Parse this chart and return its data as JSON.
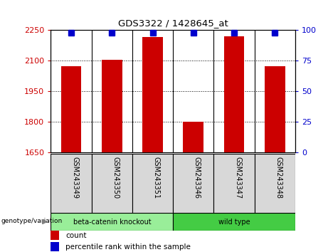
{
  "title": "GDS3322 / 1428645_at",
  "samples": [
    "GSM243349",
    "GSM243350",
    "GSM243351",
    "GSM243346",
    "GSM243347",
    "GSM243348"
  ],
  "counts": [
    2075,
    2105,
    2215,
    1800,
    2220,
    2075
  ],
  "ylim_left": [
    1650,
    2250
  ],
  "yticks_left": [
    1650,
    1800,
    1950,
    2100,
    2250
  ],
  "ylim_right": [
    0,
    100
  ],
  "yticks_right": [
    0,
    25,
    50,
    75,
    100
  ],
  "bar_color": "#cc0000",
  "percentile_color": "#0000cc",
  "group1_label": "beta-catenin knockout",
  "group2_label": "wild type",
  "group1_n": 3,
  "group2_n": 3,
  "group1_color": "#99ee99",
  "group2_color": "#44cc44",
  "xlabel_text": "genotype/variation",
  "legend_count_label": "count",
  "legend_percentile_label": "percentile rank within the sample",
  "bar_color_legend": "#cc0000",
  "percentile_color_legend": "#0000cc",
  "tick_label_color_left": "#cc0000",
  "tick_label_color_right": "#0000cc",
  "bar_width": 0.5,
  "sample_bg_color": "#d8d8d8",
  "percentile_marker_size": 6
}
